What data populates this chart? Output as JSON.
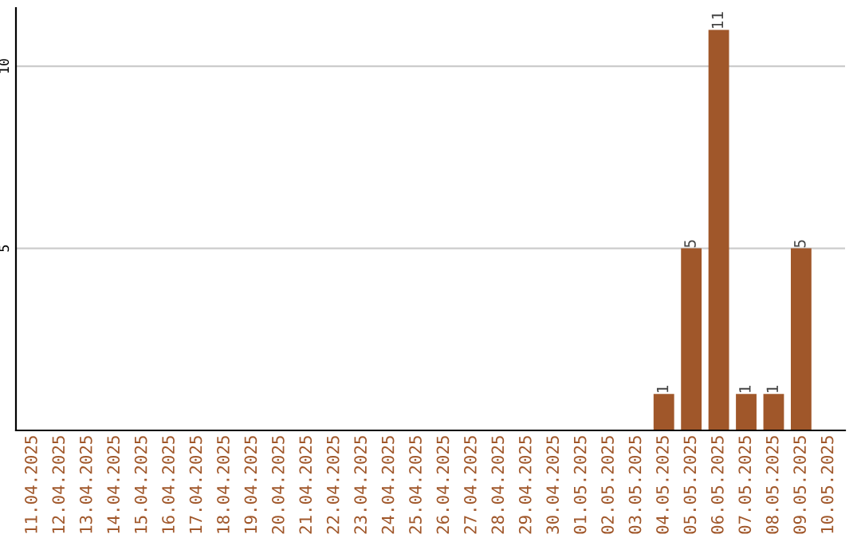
{
  "chart_data": {
    "type": "bar",
    "categories": [
      "11.04.2025",
      "12.04.2025",
      "13.04.2025",
      "14.04.2025",
      "15.04.2025",
      "16.04.2025",
      "17.04.2025",
      "18.04.2025",
      "19.04.2025",
      "20.04.2025",
      "21.04.2025",
      "22.04.2025",
      "23.04.2025",
      "24.04.2025",
      "25.04.2025",
      "26.04.2025",
      "27.04.2025",
      "28.04.2025",
      "29.04.2025",
      "30.04.2025",
      "01.05.2025",
      "02.05.2025",
      "03.05.2025",
      "04.05.2025",
      "05.05.2025",
      "06.05.2025",
      "07.05.2025",
      "08.05.2025",
      "09.05.2025",
      "10.05.2025"
    ],
    "values": [
      0,
      0,
      0,
      0,
      0,
      0,
      0,
      0,
      0,
      0,
      0,
      0,
      0,
      0,
      0,
      0,
      0,
      0,
      0,
      0,
      0,
      0,
      0,
      1,
      5,
      11,
      1,
      1,
      5,
      0
    ],
    "value_labels": [
      null,
      null,
      null,
      null,
      null,
      null,
      null,
      null,
      null,
      null,
      null,
      null,
      null,
      null,
      null,
      null,
      null,
      null,
      null,
      null,
      null,
      null,
      null,
      "1",
      "5",
      "11",
      "1",
      "1",
      "5",
      null
    ],
    "color": "#a0572a",
    "ylim": [
      0,
      11.6
    ],
    "yticks": [
      5,
      10
    ],
    "grid": "y"
  }
}
